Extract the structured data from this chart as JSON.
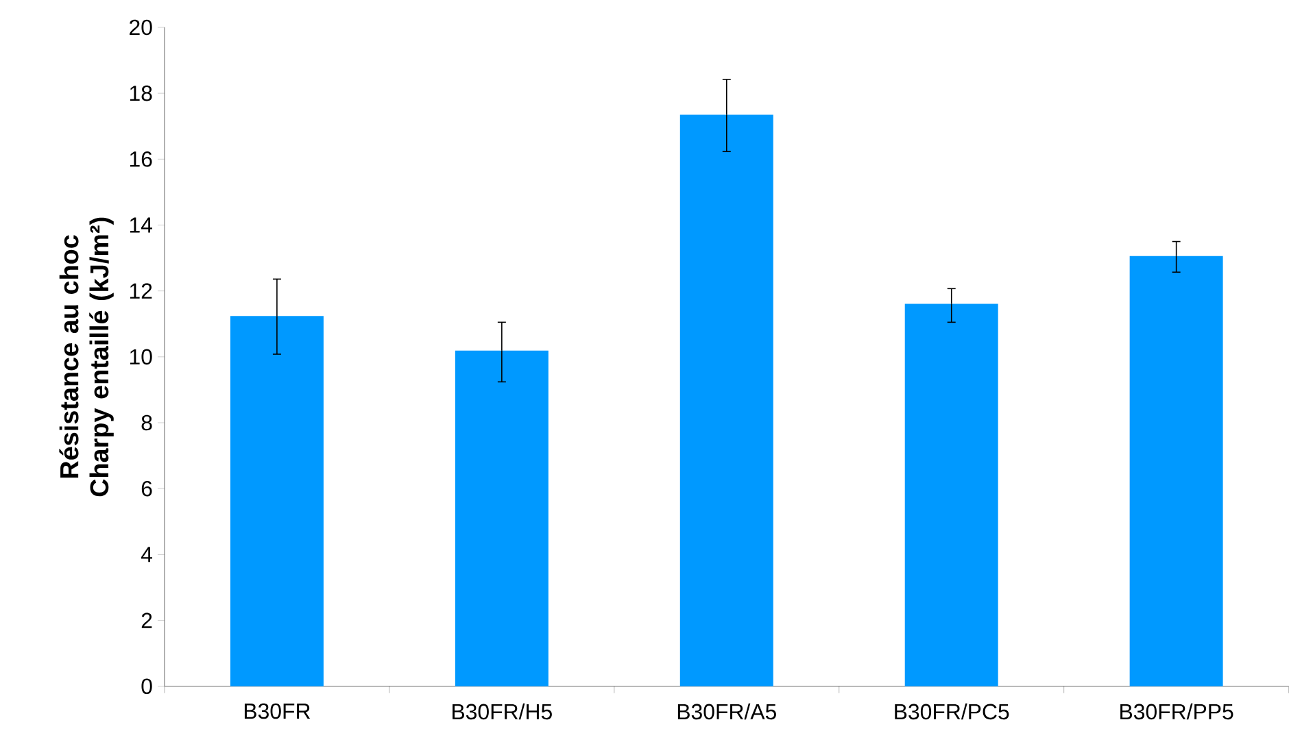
{
  "chart_data": {
    "type": "bar",
    "ylabel": "Résistance au choc Charpy entaillé (kJ/m²)",
    "categories": [
      "B30FR",
      "B30FR/H5",
      "B30FR/A5",
      "B30FR/PC5",
      "B30FR/PP5"
    ],
    "values": [
      11.24,
      10.19,
      17.35,
      11.61,
      13.06
    ],
    "errors": [
      [
        10.08,
        12.36
      ],
      [
        9.24,
        11.05
      ],
      [
        16.23,
        18.42
      ],
      [
        11.05,
        12.07
      ],
      [
        12.57,
        13.5
      ]
    ],
    "color": "#0099ff",
    "ylim": [
      0,
      20
    ],
    "yticks": [
      0,
      2,
      4,
      6,
      8,
      10,
      12,
      14,
      16,
      18,
      20
    ],
    "grid": false
  }
}
